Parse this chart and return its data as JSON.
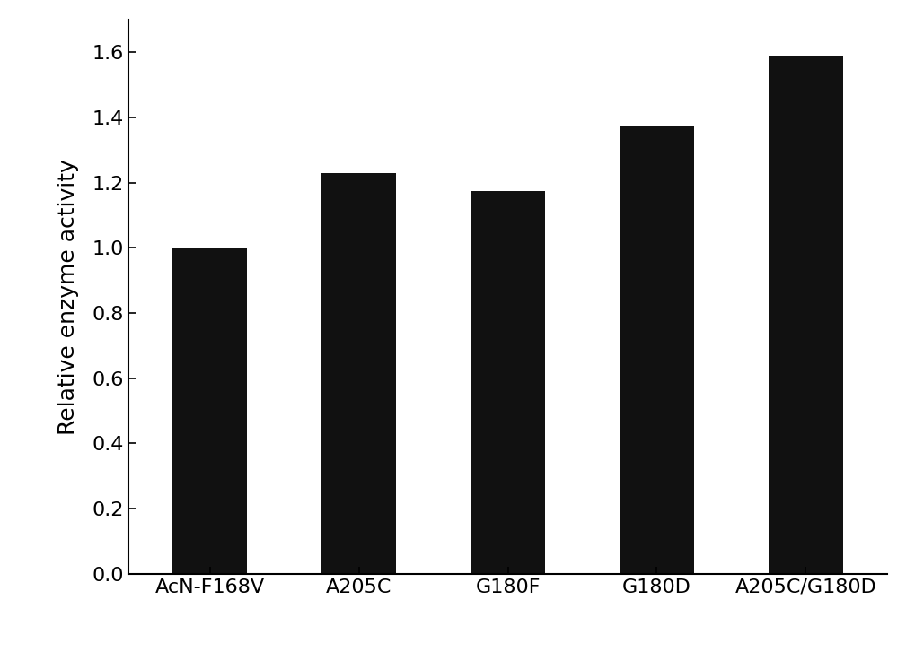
{
  "categories": [
    "AcN-F168V",
    "A205C",
    "G180F",
    "G180D",
    "A205C/G180D"
  ],
  "values": [
    1.0,
    1.23,
    1.175,
    1.375,
    1.59
  ],
  "bar_color": "#111111",
  "ylabel": "Relative enzyme activity",
  "ylim": [
    0,
    1.7
  ],
  "yticks": [
    0.0,
    0.2,
    0.4,
    0.6,
    0.8,
    1.0,
    1.2,
    1.4,
    1.6
  ],
  "bar_width": 0.5,
  "background_color": "#ffffff",
  "tick_fontsize": 16,
  "ylabel_fontsize": 18,
  "xlabel_fontsize": 16
}
